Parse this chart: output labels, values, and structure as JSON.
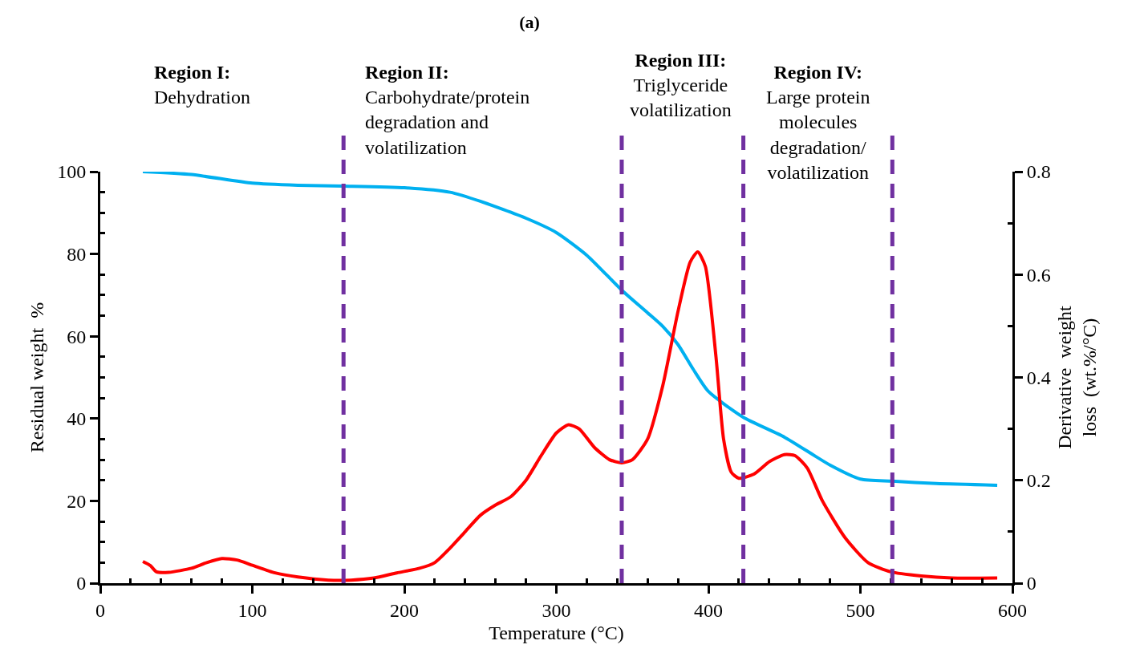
{
  "chart_data": {
    "type": "line",
    "title": "(a)",
    "xlabel": "Temperature (°C)",
    "ylabel": "Residual weight  %",
    "y2label": "Derivative  weight\nloss  (wt.%/°C)",
    "xlim": [
      0,
      600
    ],
    "xticks": [
      0,
      {
        "value": 20,
        "label": null
      },
      {
        "value": 40,
        "label": null
      },
      {
        "value": 60,
        "label": null
      },
      {
        "value": 80,
        "label": null
      },
      100,
      {
        "value": 120,
        "label": null
      },
      {
        "value": 140,
        "label": null
      },
      {
        "value": 160,
        "label": null
      },
      {
        "value": 180,
        "label": null
      },
      200,
      {
        "value": 220,
        "label": null
      },
      {
        "value": 240,
        "label": null
      },
      {
        "value": 260,
        "label": null
      },
      {
        "value": 280,
        "label": null
      },
      300,
      {
        "value": 320,
        "label": null
      },
      {
        "value": 340,
        "label": null
      },
      {
        "value": 360,
        "label": null
      },
      {
        "value": 380,
        "label": null
      },
      400,
      {
        "value": 420,
        "label": null
      },
      {
        "value": 440,
        "label": null
      },
      {
        "value": 460,
        "label": null
      },
      {
        "value": 480,
        "label": null
      },
      500,
      {
        "value": 520,
        "label": null
      },
      {
        "value": 540,
        "label": null
      },
      {
        "value": 560,
        "label": null
      },
      {
        "value": 580,
        "label": null
      },
      600
    ],
    "ylim": [
      0,
      100
    ],
    "yticks": [
      0,
      {
        "value": 5,
        "label": null
      },
      {
        "value": 10,
        "label": null
      },
      {
        "value": 15,
        "label": null
      },
      20,
      {
        "value": 25,
        "label": null
      },
      {
        "value": 30,
        "label": null
      },
      {
        "value": 35,
        "label": null
      },
      40,
      {
        "value": 45,
        "label": null
      },
      {
        "value": 50,
        "label": null
      },
      {
        "value": 55,
        "label": null
      },
      60,
      {
        "value": 65,
        "label": null
      },
      {
        "value": 70,
        "label": null
      },
      {
        "value": 75,
        "label": null
      },
      80,
      {
        "value": 85,
        "label": null
      },
      {
        "value": 90,
        "label": null
      },
      {
        "value": 95,
        "label": null
      },
      100
    ],
    "y2lim": [
      0,
      0.8
    ],
    "y2ticks": [
      0,
      {
        "value": 0.1,
        "label": null
      },
      0.2,
      {
        "value": 0.3,
        "label": null
      },
      0.4,
      {
        "value": 0.5,
        "label": null
      },
      0.6,
      {
        "value": 0.7,
        "label": null
      },
      0.8
    ],
    "marker": "none",
    "line_style": "solid",
    "series": [
      {
        "color": "#00b0f0",
        "x": [
          28,
          60,
          100,
          130,
          160,
          200,
          230,
          250,
          280,
          300,
          320,
          343,
          360,
          370,
          380,
          390,
          400,
          423,
          450,
          480,
          500,
          521,
          550,
          590
        ],
        "values": [
          100,
          99.3,
          97.2,
          96.7,
          96.5,
          96.1,
          95,
          92.8,
          88.7,
          85.2,
          79.7,
          71.2,
          65.7,
          62.4,
          58,
          52,
          46.6,
          40.3,
          35.5,
          28.7,
          25.3,
          24.8,
          24.2,
          23.8
        ]
      },
      {
        "color": "#ff0000",
        "axis": "y2",
        "x": [
          28,
          33,
          37,
          45,
          60,
          70,
          80,
          90,
          100,
          115,
          130,
          150,
          165,
          180,
          195,
          210,
          220,
          230,
          240,
          250,
          260,
          270,
          280,
          290,
          300,
          308,
          315,
          325,
          335,
          343,
          350,
          360,
          370,
          380,
          388,
          393,
          398,
          405,
          410,
          415,
          420,
          430,
          440,
          450,
          457,
          465,
          475,
          490,
          505,
          520,
          540,
          560,
          590
        ],
        "values": [
          0.042,
          0.034,
          0.022,
          0.021,
          0.029,
          0.04,
          0.048,
          0.045,
          0.035,
          0.02,
          0.012,
          0.006,
          0.006,
          0.01,
          0.02,
          0.029,
          0.04,
          0.068,
          0.1,
          0.132,
          0.152,
          0.168,
          0.2,
          0.248,
          0.292,
          0.308,
          0.3,
          0.264,
          0.24,
          0.234,
          0.24,
          0.28,
          0.384,
          0.528,
          0.624,
          0.644,
          0.616,
          0.44,
          0.28,
          0.216,
          0.204,
          0.212,
          0.236,
          0.25,
          0.248,
          0.224,
          0.16,
          0.088,
          0.04,
          0.022,
          0.014,
          0.01,
          0.01
        ]
      }
    ],
    "ref_lines": [
      {
        "axis": "x",
        "value": 160,
        "label": null,
        "color": "#7030a0",
        "line_style": "dashed"
      },
      {
        "axis": "x",
        "value": 343,
        "label": null,
        "color": "#7030a0",
        "line_style": "dashed"
      },
      {
        "axis": "x",
        "value": 423,
        "label": null,
        "color": "#7030a0",
        "line_style": "dashed"
      },
      {
        "axis": "x",
        "value": 521,
        "label": null,
        "color": "#7030a0",
        "line_style": "dashed"
      }
    ],
    "annotations": [
      "Region I:\nDehydration",
      "Region II:\nCarbohydrate/protein\ndegradation and\nvolatilization",
      "Region III:\nTriglyceride\nvolatilization",
      "Region IV:\nLarge protein\nmolecules\ndegradation/\nvolatilization"
    ]
  }
}
